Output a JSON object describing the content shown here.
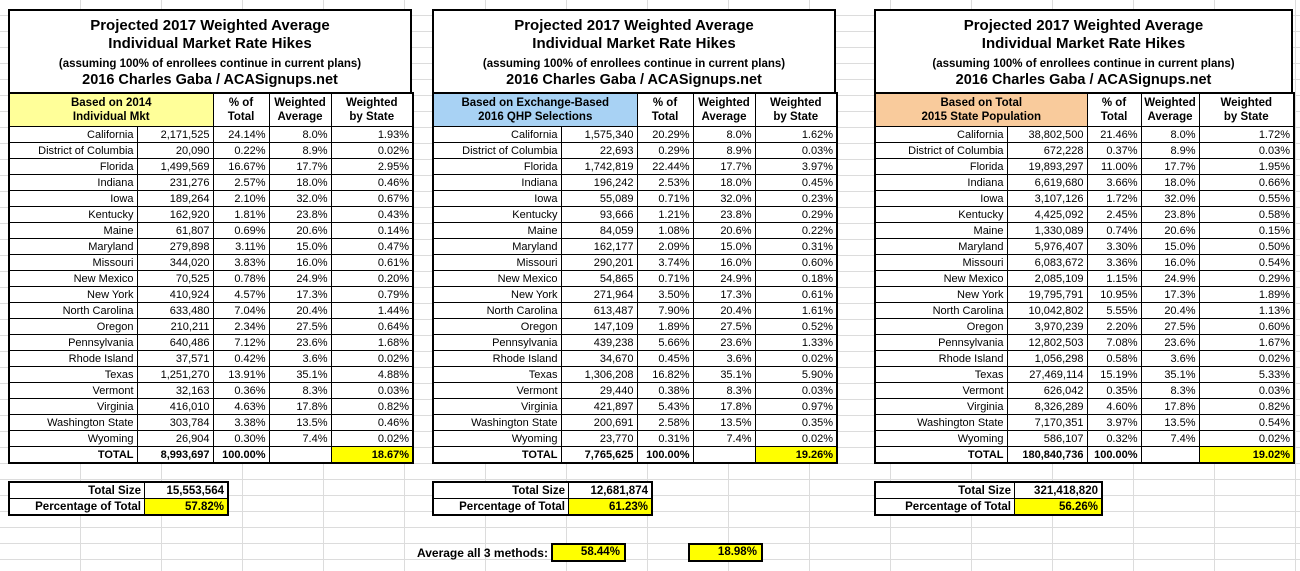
{
  "title": {
    "line1": "Projected 2017 Weighted Average",
    "line2": "Individual Market Rate Hikes",
    "line3": "(assuming 100% of enrollees continue in current plans)",
    "line4": "2016 Charles Gaba / ACASignups.net"
  },
  "columns": {
    "pct": {
      "line1": "% of",
      "line2": "Total"
    },
    "wavg": {
      "line1": "Weighted",
      "line2": "Average"
    },
    "wstate": {
      "line1": "Weighted",
      "line2": "by State"
    }
  },
  "colors": {
    "highlight_yellow": "#FFFF00",
    "basis_yellow": "#FFFF99",
    "basis_blue": "#A8D2F4",
    "basis_orange": "#F9CB9C",
    "grid_line": "#DCDCDC",
    "table_border": "#000000"
  },
  "tables": [
    {
      "basis": {
        "line1": "Based on 2014",
        "line2": "Individual Mkt"
      },
      "basis_color": "#FFFF99",
      "rows": [
        [
          "California",
          "2,171,525",
          "24.14%",
          "8.0%",
          "1.93%"
        ],
        [
          "District of Columbia",
          "20,090",
          "0.22%",
          "8.9%",
          "0.02%"
        ],
        [
          "Florida",
          "1,499,569",
          "16.67%",
          "17.7%",
          "2.95%"
        ],
        [
          "Indiana",
          "231,276",
          "2.57%",
          "18.0%",
          "0.46%"
        ],
        [
          "Iowa",
          "189,264",
          "2.10%",
          "32.0%",
          "0.67%"
        ],
        [
          "Kentucky",
          "162,920",
          "1.81%",
          "23.8%",
          "0.43%"
        ],
        [
          "Maine",
          "61,807",
          "0.69%",
          "20.6%",
          "0.14%"
        ],
        [
          "Maryland",
          "279,898",
          "3.11%",
          "15.0%",
          "0.47%"
        ],
        [
          "Missouri",
          "344,020",
          "3.83%",
          "16.0%",
          "0.61%"
        ],
        [
          "New Mexico",
          "70,525",
          "0.78%",
          "24.9%",
          "0.20%"
        ],
        [
          "New York",
          "410,924",
          "4.57%",
          "17.3%",
          "0.79%"
        ],
        [
          "North Carolina",
          "633,480",
          "7.04%",
          "20.4%",
          "1.44%"
        ],
        [
          "Oregon",
          "210,211",
          "2.34%",
          "27.5%",
          "0.64%"
        ],
        [
          "Pennsylvania",
          "640,486",
          "7.12%",
          "23.6%",
          "1.68%"
        ],
        [
          "Rhode Island",
          "37,571",
          "0.42%",
          "3.6%",
          "0.02%"
        ],
        [
          "Texas",
          "1,251,270",
          "13.91%",
          "35.1%",
          "4.88%"
        ],
        [
          "Vermont",
          "32,163",
          "0.36%",
          "8.3%",
          "0.03%"
        ],
        [
          "Virginia",
          "416,010",
          "4.63%",
          "17.8%",
          "0.82%"
        ],
        [
          "Washington State",
          "303,784",
          "3.38%",
          "13.5%",
          "0.46%"
        ],
        [
          "Wyoming",
          "26,904",
          "0.30%",
          "7.4%",
          "0.02%"
        ]
      ],
      "total": {
        "label": "TOTAL",
        "value": "8,993,697",
        "pct": "100.00%",
        "wavg": "",
        "wstate": "18.67%"
      },
      "summary": {
        "size_label": "Total Size",
        "size_value": "15,553,564",
        "pct_label": "Percentage of Total",
        "pct_value": "57.82%"
      }
    },
    {
      "basis": {
        "line1": "Based on Exchange-Based",
        "line2": "2016 QHP Selections"
      },
      "basis_color": "#A8D2F4",
      "rows": [
        [
          "California",
          "1,575,340",
          "20.29%",
          "8.0%",
          "1.62%"
        ],
        [
          "District of Columbia",
          "22,693",
          "0.29%",
          "8.9%",
          "0.03%"
        ],
        [
          "Florida",
          "1,742,819",
          "22.44%",
          "17.7%",
          "3.97%"
        ],
        [
          "Indiana",
          "196,242",
          "2.53%",
          "18.0%",
          "0.45%"
        ],
        [
          "Iowa",
          "55,089",
          "0.71%",
          "32.0%",
          "0.23%"
        ],
        [
          "Kentucky",
          "93,666",
          "1.21%",
          "23.8%",
          "0.29%"
        ],
        [
          "Maine",
          "84,059",
          "1.08%",
          "20.6%",
          "0.22%"
        ],
        [
          "Maryland",
          "162,177",
          "2.09%",
          "15.0%",
          "0.31%"
        ],
        [
          "Missouri",
          "290,201",
          "3.74%",
          "16.0%",
          "0.60%"
        ],
        [
          "New Mexico",
          "54,865",
          "0.71%",
          "24.9%",
          "0.18%"
        ],
        [
          "New York",
          "271,964",
          "3.50%",
          "17.3%",
          "0.61%"
        ],
        [
          "North Carolina",
          "613,487",
          "7.90%",
          "20.4%",
          "1.61%"
        ],
        [
          "Oregon",
          "147,109",
          "1.89%",
          "27.5%",
          "0.52%"
        ],
        [
          "Pennsylvania",
          "439,238",
          "5.66%",
          "23.6%",
          "1.33%"
        ],
        [
          "Rhode Island",
          "34,670",
          "0.45%",
          "3.6%",
          "0.02%"
        ],
        [
          "Texas",
          "1,306,208",
          "16.82%",
          "35.1%",
          "5.90%"
        ],
        [
          "Vermont",
          "29,440",
          "0.38%",
          "8.3%",
          "0.03%"
        ],
        [
          "Virginia",
          "421,897",
          "5.43%",
          "17.8%",
          "0.97%"
        ],
        [
          "Washington State",
          "200,691",
          "2.58%",
          "13.5%",
          "0.35%"
        ],
        [
          "Wyoming",
          "23,770",
          "0.31%",
          "7.4%",
          "0.02%"
        ]
      ],
      "total": {
        "label": "TOTAL",
        "value": "7,765,625",
        "pct": "100.00%",
        "wavg": "",
        "wstate": "19.26%"
      },
      "summary": {
        "size_label": "Total Size",
        "size_value": "12,681,874",
        "pct_label": "Percentage of Total",
        "pct_value": "61.23%"
      }
    },
    {
      "basis": {
        "line1": "Based on Total",
        "line2": "2015 State Population"
      },
      "basis_color": "#F9CB9C",
      "rows": [
        [
          "California",
          "38,802,500",
          "21.46%",
          "8.0%",
          "1.72%"
        ],
        [
          "District of Columbia",
          "672,228",
          "0.37%",
          "8.9%",
          "0.03%"
        ],
        [
          "Florida",
          "19,893,297",
          "11.00%",
          "17.7%",
          "1.95%"
        ],
        [
          "Indiana",
          "6,619,680",
          "3.66%",
          "18.0%",
          "0.66%"
        ],
        [
          "Iowa",
          "3,107,126",
          "1.72%",
          "32.0%",
          "0.55%"
        ],
        [
          "Kentucky",
          "4,425,092",
          "2.45%",
          "23.8%",
          "0.58%"
        ],
        [
          "Maine",
          "1,330,089",
          "0.74%",
          "20.6%",
          "0.15%"
        ],
        [
          "Maryland",
          "5,976,407",
          "3.30%",
          "15.0%",
          "0.50%"
        ],
        [
          "Missouri",
          "6,083,672",
          "3.36%",
          "16.0%",
          "0.54%"
        ],
        [
          "New Mexico",
          "2,085,109",
          "1.15%",
          "24.9%",
          "0.29%"
        ],
        [
          "New York",
          "19,795,791",
          "10.95%",
          "17.3%",
          "1.89%"
        ],
        [
          "North Carolina",
          "10,042,802",
          "5.55%",
          "20.4%",
          "1.13%"
        ],
        [
          "Oregon",
          "3,970,239",
          "2.20%",
          "27.5%",
          "0.60%"
        ],
        [
          "Pennsylvania",
          "12,802,503",
          "7.08%",
          "23.6%",
          "1.67%"
        ],
        [
          "Rhode Island",
          "1,056,298",
          "0.58%",
          "3.6%",
          "0.02%"
        ],
        [
          "Texas",
          "27,469,114",
          "15.19%",
          "35.1%",
          "5.33%"
        ],
        [
          "Vermont",
          "626,042",
          "0.35%",
          "8.3%",
          "0.03%"
        ],
        [
          "Virginia",
          "8,326,289",
          "4.60%",
          "17.8%",
          "0.82%"
        ],
        [
          "Washington State",
          "7,170,351",
          "3.97%",
          "13.5%",
          "0.54%"
        ],
        [
          "Wyoming",
          "586,107",
          "0.32%",
          "7.4%",
          "0.02%"
        ]
      ],
      "total": {
        "label": "TOTAL",
        "value": "180,840,736",
        "pct": "100.00%",
        "wavg": "",
        "wstate": "19.02%"
      },
      "summary": {
        "size_label": "Total Size",
        "size_value": "321,418,820",
        "pct_label": "Percentage of Total",
        "pct_value": "56.26%"
      }
    }
  ],
  "footer": {
    "average_label": "Average all 3 methods:",
    "average_enrollment_pct": "58.44%",
    "average_rate_hike": "18.98%"
  }
}
